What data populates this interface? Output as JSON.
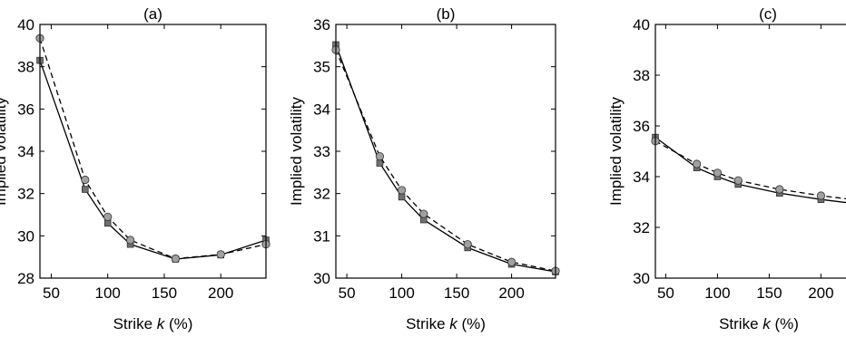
{
  "chart_data": [
    {
      "type": "line",
      "title": "(a)",
      "xlabel": "Strike k (%)",
      "ylabel": "Implied volatility",
      "xlim": [
        40,
        240
      ],
      "ylim": [
        28,
        40
      ],
      "xticks": [
        50,
        100,
        150,
        200
      ],
      "xtick_labels": [
        "50",
        "100",
        "150",
        "200"
      ],
      "yticks": [
        28,
        30,
        32,
        34,
        36,
        38,
        40
      ],
      "grid": false,
      "series": [
        {
          "style": "solid",
          "marker": "square",
          "color": "#000000",
          "marker_color": "#707070",
          "x": [
            40,
            80,
            100,
            120,
            160,
            200,
            240
          ],
          "y": [
            38.3,
            32.2,
            30.6,
            29.6,
            28.9,
            29.1,
            29.8
          ]
        },
        {
          "style": "dashed",
          "marker": "circle",
          "color": "#000000",
          "marker_color": "#a0a0a0",
          "x": [
            40,
            80,
            100,
            120,
            160,
            200,
            240
          ],
          "y": [
            39.35,
            32.65,
            30.9,
            29.8,
            28.92,
            29.12,
            29.6
          ]
        }
      ]
    },
    {
      "type": "line",
      "title": "(b)",
      "xlabel": "Strike k (%)",
      "ylabel": "Implied volatility",
      "xlim": [
        40,
        240
      ],
      "ylim": [
        30,
        36
      ],
      "xticks": [
        50,
        100,
        150,
        200
      ],
      "xtick_labels": [
        "50",
        "100",
        "150",
        "200"
      ],
      "yticks": [
        30,
        31,
        32,
        33,
        34,
        35,
        36
      ],
      "grid": false,
      "series": [
        {
          "style": "solid",
          "marker": "square",
          "color": "#000000",
          "marker_color": "#707070",
          "x": [
            40,
            80,
            100,
            120,
            160,
            200,
            240
          ],
          "y": [
            35.52,
            32.72,
            31.92,
            31.38,
            30.72,
            30.33,
            30.15
          ]
        },
        {
          "style": "dashed",
          "marker": "circle",
          "color": "#000000",
          "marker_color": "#a0a0a0",
          "x": [
            40,
            80,
            100,
            120,
            160,
            200,
            240
          ],
          "y": [
            35.4,
            32.88,
            32.08,
            31.52,
            30.8,
            30.38,
            30.17
          ]
        }
      ]
    },
    {
      "type": "line",
      "title": "(c)",
      "xlabel": "Strike k (%)",
      "ylabel": "Implied volatility",
      "xlim": [
        40,
        240
      ],
      "ylim": [
        30,
        40
      ],
      "xticks": [
        50,
        100,
        150,
        200
      ],
      "xtick_labels": [
        "50",
        "100",
        "150",
        "200"
      ],
      "yticks": [
        30,
        32,
        34,
        36,
        38,
        40
      ],
      "grid": false,
      "series": [
        {
          "style": "solid",
          "marker": "square",
          "color": "#000000",
          "marker_color": "#707070",
          "x": [
            40,
            80,
            100,
            120,
            160,
            200,
            240
          ],
          "y": [
            35.55,
            34.35,
            34.0,
            33.7,
            33.35,
            33.1,
            32.9
          ]
        },
        {
          "style": "dashed",
          "marker": "circle",
          "color": "#000000",
          "marker_color": "#a0a0a0",
          "x": [
            40,
            80,
            100,
            120,
            160,
            200,
            240
          ],
          "y": [
            35.4,
            34.5,
            34.15,
            33.85,
            33.5,
            33.25,
            33.05
          ]
        }
      ]
    }
  ]
}
